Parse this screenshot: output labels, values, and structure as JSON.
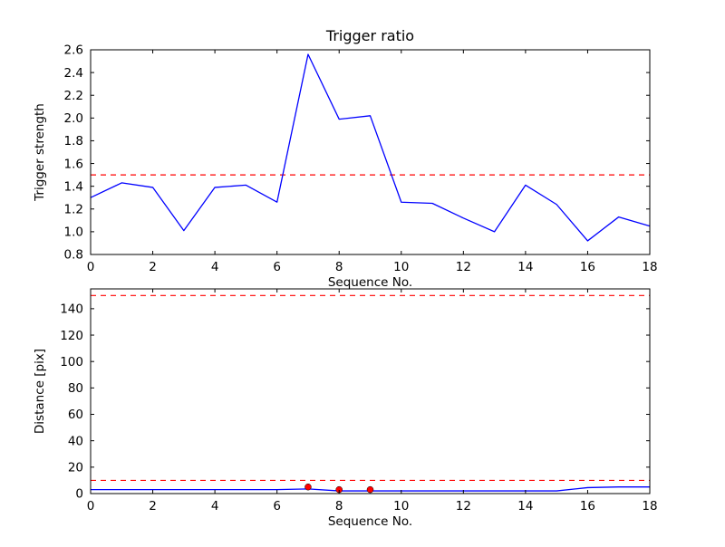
{
  "figure": {
    "background": "#ffffff",
    "line_color": "#0000ff",
    "threshold_color": "#ff0000",
    "marker_color": "#ff0000",
    "axis_color": "#000000"
  },
  "chart_data": [
    {
      "type": "line",
      "title": "Trigger ratio",
      "xlabel": "Sequence No.",
      "ylabel": "Trigger strength",
      "xlim": [
        0,
        18
      ],
      "ylim": [
        0.8,
        2.6
      ],
      "xticks": [
        0,
        2,
        4,
        6,
        8,
        10,
        12,
        14,
        16,
        18
      ],
      "xtick_labels": [
        "0",
        "2",
        "4",
        "6",
        "8",
        "10",
        "12",
        "14",
        "16",
        "18"
      ],
      "yticks": [
        0.8,
        1.0,
        1.2,
        1.4,
        1.6,
        1.8,
        2.0,
        2.2,
        2.4,
        2.6
      ],
      "ytick_labels": [
        "0.8",
        "1.0",
        "1.2",
        "1.4",
        "1.6",
        "1.8",
        "2.0",
        "2.2",
        "2.4",
        "2.6"
      ],
      "grid": false,
      "legend": "none",
      "x": [
        0,
        1,
        2,
        3,
        4,
        5,
        6,
        7,
        8,
        9,
        10,
        11,
        12,
        13,
        14,
        15,
        16,
        17,
        18
      ],
      "series": [
        {
          "name": "trigger strength",
          "color": "#0000ff",
          "values": [
            1.3,
            1.43,
            1.39,
            1.01,
            1.39,
            1.41,
            1.26,
            2.56,
            1.99,
            2.02,
            1.26,
            1.25,
            1.12,
            1.0,
            1.41,
            1.24,
            0.92,
            1.13,
            1.05
          ]
        }
      ],
      "thresholds": [
        {
          "value": 1.5,
          "color": "#ff0000",
          "style": "dashed"
        }
      ]
    },
    {
      "type": "line",
      "title": "",
      "xlabel": "Sequence No.",
      "ylabel": "Distance [pix]",
      "xlim": [
        0,
        18
      ],
      "ylim": [
        0,
        155
      ],
      "xticks": [
        0,
        2,
        4,
        6,
        8,
        10,
        12,
        14,
        16,
        18
      ],
      "xtick_labels": [
        "0",
        "2",
        "4",
        "6",
        "8",
        "10",
        "12",
        "14",
        "16",
        "18"
      ],
      "yticks": [
        0,
        20,
        40,
        60,
        80,
        100,
        120,
        140
      ],
      "ytick_labels": [
        "0",
        "20",
        "40",
        "60",
        "80",
        "100",
        "120",
        "140"
      ],
      "grid": false,
      "legend": "none",
      "x": [
        0,
        1,
        2,
        3,
        4,
        5,
        6,
        7,
        8,
        9,
        10,
        11,
        12,
        13,
        14,
        15,
        16,
        17,
        18
      ],
      "series": [
        {
          "name": "distance",
          "color": "#0000ff",
          "values": [
            3,
            3,
            3,
            3,
            3,
            3,
            3,
            3.5,
            2,
            2,
            2,
            2,
            2,
            2,
            2,
            2,
            4.5,
            5,
            5
          ]
        }
      ],
      "thresholds": [
        {
          "value": 150,
          "color": "#ff0000",
          "style": "dashed"
        },
        {
          "value": 10,
          "color": "#ff0000",
          "style": "dashed"
        }
      ],
      "markers": {
        "shape": "circle",
        "color": "#ff0000",
        "x": [
          7,
          8,
          9
        ],
        "y": [
          5,
          3,
          3
        ]
      }
    }
  ]
}
